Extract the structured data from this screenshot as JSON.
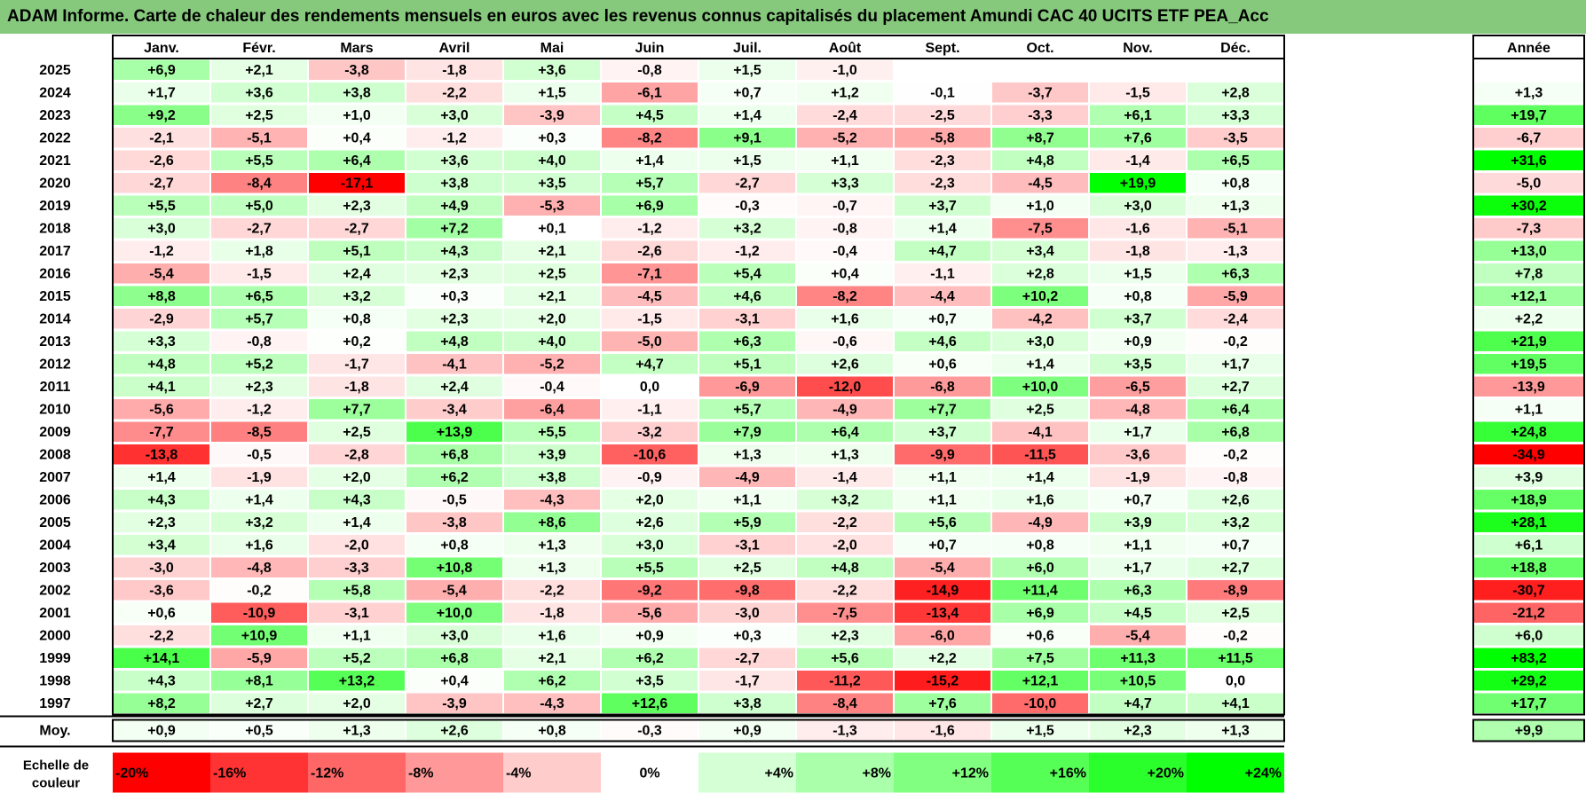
{
  "title": "ADAM Informe. Carte de chaleur des rendements mensuels en euros avec les revenus connus capitalisés du placement Amundi CAC 40 UCITS ETF PEA_Acc",
  "chart_data": {
    "type": "heatmap",
    "months": [
      "Janv.",
      "Févr.",
      "Mars",
      "Avril",
      "Mai",
      "Juin",
      "Juil.",
      "Août",
      "Sept.",
      "Oct.",
      "Nov.",
      "Déc."
    ],
    "year_header": "Année",
    "avg_label": "Moy.",
    "rows": [
      {
        "year": "2025",
        "values": [
          6.9,
          2.1,
          -3.8,
          -1.8,
          3.6,
          -0.8,
          1.5,
          -1.0,
          null,
          null,
          null,
          null
        ],
        "annual": null
      },
      {
        "year": "2024",
        "values": [
          1.7,
          3.6,
          3.8,
          -2.2,
          1.5,
          -6.1,
          0.7,
          1.2,
          -0.1,
          -3.7,
          -1.5,
          2.8
        ],
        "annual": 1.3
      },
      {
        "year": "2023",
        "values": [
          9.2,
          2.5,
          1.0,
          3.0,
          -3.9,
          4.5,
          1.4,
          -2.4,
          -2.5,
          -3.3,
          6.1,
          3.3
        ],
        "annual": 19.7
      },
      {
        "year": "2022",
        "values": [
          -2.1,
          -5.1,
          0.4,
          -1.2,
          0.3,
          -8.2,
          9.1,
          -5.2,
          -5.8,
          8.7,
          7.6,
          -3.5
        ],
        "annual": -6.7
      },
      {
        "year": "2021",
        "values": [
          -2.6,
          5.5,
          6.4,
          3.6,
          4.0,
          1.4,
          1.5,
          1.1,
          -2.3,
          4.8,
          -1.4,
          6.5
        ],
        "annual": 31.6
      },
      {
        "year": "2020",
        "values": [
          -2.7,
          -8.4,
          -17.1,
          3.8,
          3.5,
          5.7,
          -2.7,
          3.3,
          -2.3,
          -4.5,
          19.9,
          0.8
        ],
        "annual": -5.0
      },
      {
        "year": "2019",
        "values": [
          5.5,
          5.0,
          2.3,
          4.9,
          -5.3,
          6.9,
          -0.3,
          -0.7,
          3.7,
          1.0,
          3.0,
          1.3
        ],
        "annual": 30.2
      },
      {
        "year": "2018",
        "values": [
          3.0,
          -2.7,
          -2.7,
          7.2,
          0.1,
          -1.2,
          3.2,
          -0.8,
          1.4,
          -7.5,
          -1.6,
          -5.1
        ],
        "annual": -7.3
      },
      {
        "year": "2017",
        "values": [
          -1.2,
          1.8,
          5.1,
          4.3,
          2.1,
          -2.6,
          -1.2,
          -0.4,
          4.7,
          3.4,
          -1.8,
          -1.3
        ],
        "annual": 13.0
      },
      {
        "year": "2016",
        "values": [
          -5.4,
          -1.5,
          2.4,
          2.3,
          2.5,
          -7.1,
          5.4,
          0.4,
          -1.1,
          2.8,
          1.5,
          6.3
        ],
        "annual": 7.8
      },
      {
        "year": "2015",
        "values": [
          8.8,
          6.5,
          3.2,
          0.3,
          2.1,
          -4.5,
          4.6,
          -8.2,
          -4.4,
          10.2,
          0.8,
          -5.9
        ],
        "annual": 12.1
      },
      {
        "year": "2014",
        "values": [
          -2.9,
          5.7,
          0.8,
          2.3,
          2.0,
          -1.5,
          -3.1,
          1.6,
          0.7,
          -4.2,
          3.7,
          -2.4
        ],
        "annual": 2.2
      },
      {
        "year": "2013",
        "values": [
          3.3,
          -0.8,
          0.2,
          4.8,
          4.0,
          -5.0,
          6.3,
          -0.6,
          4.6,
          3.0,
          0.9,
          -0.2
        ],
        "annual": 21.9
      },
      {
        "year": "2012",
        "values": [
          4.8,
          5.2,
          -1.7,
          -4.1,
          -5.2,
          4.7,
          5.1,
          2.6,
          0.6,
          1.4,
          3.5,
          1.7
        ],
        "annual": 19.5
      },
      {
        "year": "2011",
        "values": [
          4.1,
          2.3,
          -1.8,
          2.4,
          -0.4,
          0.0,
          -6.9,
          -12.0,
          -6.8,
          10.0,
          -6.5,
          2.7
        ],
        "annual": -13.9
      },
      {
        "year": "2010",
        "values": [
          -5.6,
          -1.2,
          7.7,
          -3.4,
          -6.4,
          -1.1,
          5.7,
          -4.9,
          7.7,
          2.5,
          -4.8,
          6.4
        ],
        "annual": 1.1
      },
      {
        "year": "2009",
        "values": [
          -7.7,
          -8.5,
          2.5,
          13.9,
          5.5,
          -3.2,
          7.9,
          6.4,
          3.7,
          -4.1,
          1.7,
          6.8
        ],
        "annual": 24.8
      },
      {
        "year": "2008",
        "values": [
          -13.8,
          -0.5,
          -2.8,
          6.8,
          3.9,
          -10.6,
          1.3,
          1.3,
          -9.9,
          -11.5,
          -3.6,
          -0.2
        ],
        "annual": -34.9
      },
      {
        "year": "2007",
        "values": [
          1.4,
          -1.9,
          2.0,
          6.2,
          3.8,
          -0.9,
          -4.9,
          -1.4,
          1.1,
          1.4,
          -1.9,
          -0.8
        ],
        "annual": 3.9
      },
      {
        "year": "2006",
        "values": [
          4.3,
          1.4,
          4.3,
          -0.5,
          -4.3,
          2.0,
          1.1,
          3.2,
          1.1,
          1.6,
          0.7,
          2.6
        ],
        "annual": 18.9
      },
      {
        "year": "2005",
        "values": [
          2.3,
          3.2,
          1.4,
          -3.8,
          8.6,
          2.6,
          5.9,
          -2.2,
          5.6,
          -4.9,
          3.9,
          3.2
        ],
        "annual": 28.1
      },
      {
        "year": "2004",
        "values": [
          3.4,
          1.6,
          -2.0,
          0.8,
          1.3,
          3.0,
          -3.1,
          -2.0,
          0.7,
          0.8,
          1.1,
          0.7
        ],
        "annual": 6.1
      },
      {
        "year": "2003",
        "values": [
          -3.0,
          -4.8,
          -3.3,
          10.8,
          1.3,
          5.5,
          2.5,
          4.8,
          -5.4,
          6.0,
          1.7,
          2.7
        ],
        "annual": 18.8
      },
      {
        "year": "2002",
        "values": [
          -3.6,
          -0.2,
          5.8,
          -5.4,
          -2.2,
          -9.2,
          -9.8,
          -2.2,
          -14.9,
          11.4,
          6.3,
          -8.9
        ],
        "annual": -30.7
      },
      {
        "year": "2001",
        "values": [
          0.6,
          -10.9,
          -3.1,
          10.0,
          -1.8,
          -5.6,
          -3.0,
          -7.5,
          -13.4,
          6.9,
          4.5,
          2.5
        ],
        "annual": -21.2
      },
      {
        "year": "2000",
        "values": [
          -2.2,
          10.9,
          1.1,
          3.0,
          1.6,
          0.9,
          0.3,
          2.3,
          -6.0,
          0.6,
          -5.4,
          -0.2
        ],
        "annual": 6.0
      },
      {
        "year": "1999",
        "values": [
          14.1,
          -5.9,
          5.2,
          6.8,
          2.1,
          6.2,
          -2.7,
          5.6,
          2.2,
          7.5,
          11.3,
          11.5
        ],
        "annual": 83.2
      },
      {
        "year": "1998",
        "values": [
          4.3,
          8.1,
          13.2,
          0.4,
          6.2,
          3.5,
          -1.7,
          -11.2,
          -15.2,
          12.1,
          10.5,
          0.0
        ],
        "annual": 29.2
      },
      {
        "year": "1997",
        "values": [
          8.2,
          2.7,
          2.0,
          -3.9,
          -4.3,
          12.6,
          3.8,
          -8.4,
          7.6,
          -10.0,
          4.7,
          4.1
        ],
        "annual": 17.7
      }
    ],
    "average": {
      "values": [
        0.9,
        0.5,
        1.3,
        2.6,
        0.8,
        -0.3,
        0.9,
        -1.3,
        -1.6,
        1.5,
        2.3,
        1.3
      ],
      "annual": 9.9
    },
    "scale": {
      "label_line1": "Echelle de",
      "label_line2": "couleur",
      "steps": [
        {
          "label": "-20%",
          "value": -20,
          "align": "left"
        },
        {
          "label": "-16%",
          "value": -16,
          "align": "left"
        },
        {
          "label": "-12%",
          "value": -12,
          "align": "left"
        },
        {
          "label": "-8%",
          "value": -8,
          "align": "left"
        },
        {
          "label": "-4%",
          "value": -4,
          "align": "left"
        },
        {
          "label": "0%",
          "value": 0,
          "align": "center"
        },
        {
          "label": "+4%",
          "value": 4,
          "align": "right"
        },
        {
          "label": "+8%",
          "value": 8,
          "align": "right"
        },
        {
          "label": "+12%",
          "value": 12,
          "align": "right"
        },
        {
          "label": "+16%",
          "value": 16,
          "align": "right"
        },
        {
          "label": "+20%",
          "value": 20,
          "align": "right"
        },
        {
          "label": "+24%",
          "value": 24,
          "align": "right"
        }
      ]
    },
    "colors": {
      "negative_max": "#ff0000",
      "zero": "#ffffff",
      "positive_max": "#00ff00",
      "title_bg": "#86c97d"
    }
  }
}
